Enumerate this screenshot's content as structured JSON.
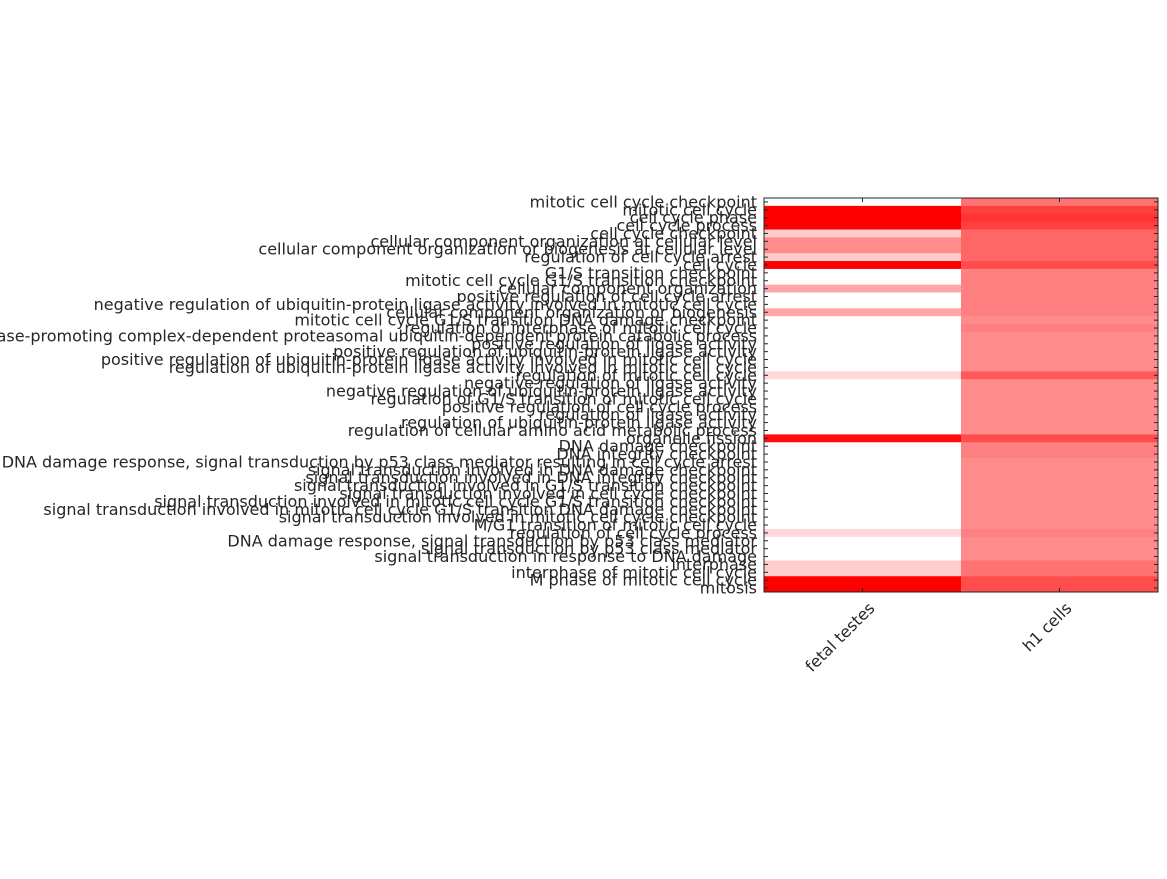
{
  "chart_data": {
    "type": "heatmap",
    "x": [
      "fetal testes",
      "h1 cells"
    ],
    "categories": [
      "mitotic cell cycle checkpoint",
      "mitotic cell cycle",
      "cell cycle phase",
      "cell cycle process",
      "cell cycle checkpoint",
      "cellular component organization at cellular level",
      "cellular component organization or biogenesis at cellular level",
      "regulation of cell cycle arrest",
      "cell cycle",
      "G1/S transition checkpoint",
      "mitotic cell cycle G1/S transition checkpoint",
      "cellular component organization",
      "positive regulation of cell cycle arrest",
      "negative regulation of ubiquitin-protein ligase activity involved in mitotic cell cycle",
      "cellular component organization or biogenesis",
      "mitotic cell cycle G1/S transition DNA damage checkpoint",
      "regulation of interphase of mitotic cell cycle",
      "anaphase-promoting complex-dependent proteasomal ubiquitin-dependent protein catabolic process",
      "positive regulation of ligase activity",
      "positive regulation of ubiquitin-protein ligase activity",
      "positive regulation of ubiquitin-protein ligase activity involved in mitotic cell cycle",
      "regulation of ubiquitin-protein ligase activity involved in mitotic cell cycle",
      "regulation of mitotic cell cycle",
      "negative regulation of ligase activity",
      "negative regulation of ubiquitin-protein ligase activity",
      "regulation of G1/S transition of mitotic cell cycle",
      "positive regulation of cell cycle process",
      "regulation of ligase activity",
      "regulation of ubiquitin-protein ligase activity",
      "regulation of cellular amino acid metabolic process",
      "organelle fission",
      "DNA damage checkpoint",
      "DNA integrity checkpoint",
      "DNA damage response, signal transduction by p53 class mediator resulting in cell cycle arrest",
      "signal transduction involved in DNA damage checkpoint",
      "signal transduction involved in DNA integrity checkpoint",
      "signal transduction involved in G1/S transition checkpoint",
      "signal transduction involved in cell cycle checkpoint",
      "signal transduction involved in mitotic cell cycle G1/S transition checkpoint",
      "signal transduction involved in mitotic cell cycle G1/S transition DNA damage checkpoint",
      "signal transduction involved in mitotic cell cycle checkpoint",
      "M/G1 transition of mitotic cell cycle",
      "regulation of cell cycle process",
      "DNA damage response, signal transduction by p53 class mediator",
      "signal transduction by p53 class mediator",
      "signal transduction in response to DNA damage",
      "interphase",
      "interphase of mitotic cell cycle",
      "M phase of mitotic cell cycle",
      "mitosis"
    ],
    "values": [
      [
        0,
        0.55
      ],
      [
        1,
        0.75
      ],
      [
        1,
        0.8
      ],
      [
        1,
        0.75
      ],
      [
        0.2,
        0.6
      ],
      [
        0.45,
        0.6
      ],
      [
        0.45,
        0.6
      ],
      [
        0.2,
        0.6
      ],
      [
        1,
        0.7
      ],
      [
        0,
        0.5
      ],
      [
        0,
        0.5
      ],
      [
        0.35,
        0.5
      ],
      [
        0,
        0.5
      ],
      [
        0,
        0.5
      ],
      [
        0.35,
        0.5
      ],
      [
        0,
        0.45
      ],
      [
        0,
        0.5
      ],
      [
        0,
        0.45
      ],
      [
        0,
        0.45
      ],
      [
        0,
        0.45
      ],
      [
        0,
        0.45
      ],
      [
        0,
        0.45
      ],
      [
        0.15,
        0.65
      ],
      [
        0,
        0.45
      ],
      [
        0,
        0.45
      ],
      [
        0,
        0.45
      ],
      [
        0,
        0.45
      ],
      [
        0,
        0.45
      ],
      [
        0,
        0.45
      ],
      [
        0,
        0.45
      ],
      [
        0.95,
        0.7
      ],
      [
        0,
        0.5
      ],
      [
        0,
        0.5
      ],
      [
        0,
        0.45
      ],
      [
        0,
        0.45
      ],
      [
        0,
        0.45
      ],
      [
        0,
        0.45
      ],
      [
        0,
        0.45
      ],
      [
        0,
        0.45
      ],
      [
        0,
        0.45
      ],
      [
        0,
        0.45
      ],
      [
        0,
        0.45
      ],
      [
        0.15,
        0.5
      ],
      [
        0,
        0.45
      ],
      [
        0,
        0.45
      ],
      [
        0,
        0.45
      ],
      [
        0.2,
        0.55
      ],
      [
        0.2,
        0.55
      ],
      [
        1,
        0.7
      ],
      [
        1,
        0.7
      ]
    ],
    "clim": [
      0,
      1
    ],
    "colors": [
      "#ffffff",
      "#ff0000"
    ]
  }
}
